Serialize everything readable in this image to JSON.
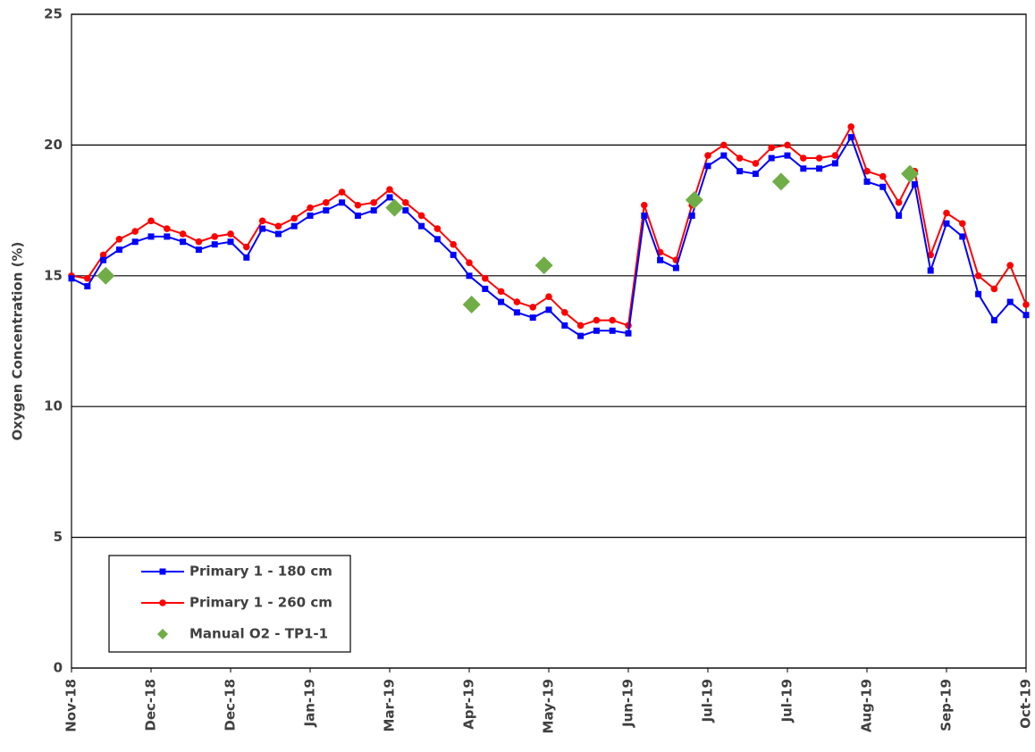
{
  "chart_data": {
    "type": "line",
    "y_label": "Oxygen Concentration (%)",
    "xlim": [
      0,
      12
    ],
    "ylim": [
      0,
      25
    ],
    "yticks": [
      0,
      5,
      10,
      15,
      20,
      25
    ],
    "xticks": [
      {
        "value": 0,
        "label": "Nov-18"
      },
      {
        "value": 1,
        "label": "Dec-18"
      },
      {
        "value": 2,
        "label": "Dec-18"
      },
      {
        "value": 3,
        "label": "Jan-19"
      },
      {
        "value": 4,
        "label": "Mar-19"
      },
      {
        "value": 5,
        "label": "Apr-19"
      },
      {
        "value": 6,
        "label": "May-19"
      },
      {
        "value": 7,
        "label": "Jun-19"
      },
      {
        "value": 8,
        "label": "Jul-19"
      },
      {
        "value": 9,
        "label": "Jul-19"
      },
      {
        "value": 10,
        "label": "Aug-19"
      },
      {
        "value": 11,
        "label": "Sep-19"
      },
      {
        "value": 12,
        "label": "Oct-19"
      }
    ],
    "grid": true,
    "series": [
      {
        "name": "Primary 1 - 180 cm",
        "color": "#0000ff",
        "marker": "square",
        "x": [
          0,
          0.2,
          0.4,
          0.6,
          0.8,
          1,
          1.2,
          1.4,
          1.6,
          1.8,
          2,
          2.2,
          2.4,
          2.6,
          2.8,
          3,
          3.2,
          3.4,
          3.6,
          3.8,
          4,
          4.2,
          4.4,
          4.6,
          4.8,
          5,
          5.2,
          5.4,
          5.6,
          5.8,
          6,
          6.2,
          6.4,
          6.6,
          6.8,
          7,
          7.2,
          7.4,
          7.6,
          7.8,
          8,
          8.2,
          8.4,
          8.6,
          8.8,
          9,
          9.2,
          9.4,
          9.6,
          9.8,
          10,
          10.2,
          10.4,
          10.6,
          10.8,
          11,
          11.2,
          11.4,
          11.6,
          11.8,
          12
        ],
        "values": [
          14.9,
          14.6,
          15.6,
          16.0,
          16.3,
          16.5,
          16.5,
          16.3,
          16.0,
          16.2,
          16.3,
          15.7,
          16.8,
          16.6,
          16.9,
          17.3,
          17.5,
          17.8,
          17.3,
          17.5,
          18.0,
          17.5,
          16.9,
          16.4,
          15.8,
          15.0,
          14.5,
          14.0,
          13.6,
          13.4,
          13.7,
          13.1,
          12.7,
          12.9,
          12.9,
          12.8,
          17.3,
          15.6,
          15.3,
          17.3,
          19.2,
          19.6,
          19.0,
          18.9,
          19.5,
          19.6,
          19.1,
          19.1,
          19.3,
          20.3,
          18.6,
          18.4,
          17.3,
          18.5,
          15.2,
          17.0,
          16.5,
          14.3,
          13.3,
          14.0,
          13.5
        ]
      },
      {
        "name": "Primary 1 - 260 cm",
        "color": "#ff0000",
        "marker": "circle",
        "x": [
          0,
          0.2,
          0.4,
          0.6,
          0.8,
          1,
          1.2,
          1.4,
          1.6,
          1.8,
          2,
          2.2,
          2.4,
          2.6,
          2.8,
          3,
          3.2,
          3.4,
          3.6,
          3.8,
          4,
          4.2,
          4.4,
          4.6,
          4.8,
          5,
          5.2,
          5.4,
          5.6,
          5.8,
          6,
          6.2,
          6.4,
          6.6,
          6.8,
          7,
          7.2,
          7.4,
          7.6,
          7.8,
          8,
          8.2,
          8.4,
          8.6,
          8.8,
          9,
          9.2,
          9.4,
          9.6,
          9.8,
          10,
          10.2,
          10.4,
          10.6,
          10.8,
          11,
          11.2,
          11.4,
          11.6,
          11.8,
          12
        ],
        "values": [
          15.0,
          14.9,
          15.8,
          16.4,
          16.7,
          17.1,
          16.8,
          16.6,
          16.3,
          16.5,
          16.6,
          16.1,
          17.1,
          16.9,
          17.2,
          17.6,
          17.8,
          18.2,
          17.7,
          17.8,
          18.3,
          17.8,
          17.3,
          16.8,
          16.2,
          15.5,
          14.9,
          14.4,
          14.0,
          13.8,
          14.2,
          13.6,
          13.1,
          13.3,
          13.3,
          13.1,
          17.7,
          15.9,
          15.6,
          17.7,
          19.6,
          20.0,
          19.5,
          19.3,
          19.9,
          20.0,
          19.5,
          19.5,
          19.6,
          20.7,
          19.0,
          18.8,
          17.8,
          19.0,
          15.8,
          17.4,
          17.0,
          15.0,
          14.5,
          15.4,
          13.9
        ]
      },
      {
        "name": "Manual O2 - TP1-1",
        "color": "#70ad47",
        "marker": "diamond",
        "line": false,
        "x": [
          0.43,
          4.06,
          5.03,
          5.94,
          7.83,
          8.92,
          10.54
        ],
        "values": [
          15.0,
          17.6,
          13.9,
          15.4,
          17.9,
          18.6,
          18.9
        ]
      }
    ]
  }
}
